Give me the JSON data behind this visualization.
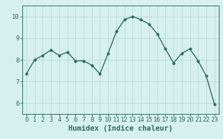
{
  "x": [
    0,
    1,
    2,
    3,
    4,
    5,
    6,
    7,
    8,
    9,
    10,
    11,
    12,
    13,
    14,
    15,
    16,
    17,
    18,
    19,
    20,
    21,
    22,
    23
  ],
  "y": [
    7.35,
    8.0,
    8.2,
    8.45,
    8.2,
    8.35,
    7.95,
    7.95,
    7.75,
    7.35,
    8.3,
    9.3,
    9.85,
    10.0,
    9.85,
    9.65,
    9.2,
    8.5,
    7.85,
    8.3,
    8.5,
    7.95,
    7.25,
    5.95
  ],
  "line_color": "#2a6b5e",
  "marker": "o",
  "markersize": 2.5,
  "linewidth": 1.0,
  "bg_color": "#d6f0ef",
  "grid_color": "#b8d8d5",
  "xlabel": "Humidex (Indice chaleur)",
  "xlabel_fontsize": 7.5,
  "tick_fontsize": 6.5,
  "xlim": [
    -0.5,
    23.5
  ],
  "ylim": [
    5.5,
    10.5
  ],
  "yticks": [
    6,
    7,
    8,
    9,
    10
  ],
  "xticks": [
    0,
    1,
    2,
    3,
    4,
    5,
    6,
    7,
    8,
    9,
    10,
    11,
    12,
    13,
    14,
    15,
    16,
    17,
    18,
    19,
    20,
    21,
    22,
    23
  ]
}
